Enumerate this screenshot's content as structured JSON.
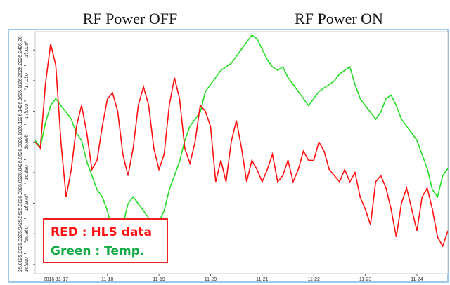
{
  "chart_data": {
    "type": "line",
    "titles": [
      "RF Power OFF",
      "RF Power ON"
    ],
    "legend_texts": [
      "RED : HLS data",
      "Green : Temp."
    ],
    "x": [
      16.6,
      16.7,
      16.8,
      16.9,
      17.0,
      17.1,
      17.2,
      17.3,
      17.4,
      17.5,
      17.6,
      17.7,
      17.8,
      17.9,
      18.0,
      18.1,
      18.2,
      18.3,
      18.4,
      18.5,
      18.6,
      18.7,
      18.8,
      18.9,
      19.0,
      19.1,
      19.2,
      19.3,
      19.4,
      19.5,
      19.6,
      19.7,
      19.8,
      19.9,
      20.0,
      20.1,
      20.2,
      20.3,
      20.4,
      20.5,
      20.6,
      20.7,
      20.8,
      20.9,
      21.0,
      21.1,
      21.2,
      21.3,
      21.4,
      21.5,
      21.6,
      21.7,
      21.8,
      21.9,
      22.0,
      22.1,
      22.2,
      22.3,
      22.4,
      22.5,
      22.6,
      22.7,
      22.8,
      22.9,
      23.0,
      23.1,
      23.2,
      23.3,
      23.4,
      23.5,
      23.6,
      23.7,
      23.8,
      23.9,
      24.0,
      24.1,
      24.2,
      24.3,
      24.4,
      24.5,
      24.6
    ],
    "series": [
      {
        "name": "HLS data",
        "color": "#ff1010",
        "values": [
          16.99,
          16.988,
          17.009,
          17.022,
          17.015,
          16.99,
          16.972,
          16.981,
          16.995,
          17.002,
          16.993,
          16.981,
          16.984,
          16.995,
          17.004,
          17.006,
          17.0,
          16.986,
          16.979,
          16.988,
          17.002,
          17.008,
          17.002,
          16.988,
          16.981,
          16.986,
          17.002,
          17.011,
          17.004,
          16.988,
          16.983,
          16.99,
          17.002,
          17.0,
          16.995,
          16.977,
          16.984,
          16.977,
          16.99,
          16.997,
          16.988,
          16.977,
          16.984,
          16.981,
          16.977,
          16.981,
          16.986,
          16.977,
          16.979,
          16.984,
          16.977,
          16.981,
          16.987,
          16.984,
          16.984,
          16.99,
          16.987,
          16.981,
          16.979,
          16.977,
          16.981,
          16.977,
          16.98,
          16.972,
          16.968,
          16.963,
          16.977,
          16.979,
          16.975,
          16.968,
          16.959,
          16.97,
          16.975,
          16.968,
          16.961,
          16.972,
          16.975,
          16.968,
          16.959,
          16.956,
          16.961
        ]
      },
      {
        "name": "Temp.",
        "color": "#22dd22",
        "axis": "y2",
        "values": [
          26.093,
          26.081,
          26.123,
          26.152,
          26.164,
          26.152,
          26.141,
          26.129,
          26.105,
          26.093,
          26.057,
          26.033,
          26.009,
          25.997,
          25.973,
          25.937,
          25.925,
          25.949,
          25.985,
          25.997,
          25.985,
          25.973,
          25.961,
          25.949,
          25.955,
          25.973,
          26.009,
          26.033,
          26.057,
          26.093,
          26.117,
          26.129,
          26.141,
          26.176,
          26.188,
          26.2,
          26.212,
          26.218,
          26.224,
          26.236,
          26.248,
          26.26,
          26.272,
          26.266,
          26.248,
          26.23,
          26.218,
          26.212,
          26.218,
          26.2,
          26.188,
          26.176,
          26.164,
          26.152,
          26.164,
          26.176,
          26.182,
          26.188,
          26.194,
          26.206,
          26.212,
          26.218,
          26.188,
          26.164,
          26.152,
          26.141,
          26.129,
          26.141,
          26.164,
          26.17,
          26.152,
          26.129,
          26.117,
          26.105,
          26.093,
          26.069,
          26.045,
          26.009,
          25.997,
          26.033,
          26.045
        ]
      }
    ],
    "xlim": [
      16.6,
      24.6
    ],
    "xticks": [
      {
        "value": 17,
        "label": "2016-11-17"
      },
      {
        "value": 18,
        "label": "11-18"
      },
      {
        "value": 19,
        "label": "11-19"
      },
      {
        "value": 20,
        "label": "11-20"
      },
      {
        "value": 21,
        "label": "11-21"
      },
      {
        "value": 22,
        "label": "11-22"
      },
      {
        "value": 23,
        "label": "11-23"
      },
      {
        "value": 24,
        "label": "11-24"
      }
    ],
    "ylim": [
      16.947,
      17.026
    ],
    "yticks": [
      {
        "value": 16.95,
        "label": "16.950"
      },
      {
        "value": 16.96,
        "label": "16.960"
      },
      {
        "value": 16.97,
        "label": "16.970"
      },
      {
        "value": 16.98,
        "label": "16.980"
      },
      {
        "value": 16.99,
        "label": "16.990"
      },
      {
        "value": 17.0,
        "label": "17.000"
      },
      {
        "value": 17.01,
        "label": "17.010"
      },
      {
        "value": 17.02,
        "label": "17.020"
      }
    ],
    "y2lim": [
      25.866,
      26.278
    ],
    "y2ticks": [
      25.88,
      {
        "value": 25.9,
        "label": "25.90"
      },
      25.92,
      25.94,
      25.96,
      25.98,
      {
        "value": 26.0,
        "label": "26.00"
      },
      26.02,
      26.04,
      26.06,
      26.08,
      {
        "value": 26.1,
        "label": "26.10"
      },
      26.12,
      26.14,
      26.16,
      26.18,
      {
        "value": 26.2,
        "label": "26.20"
      },
      26.22,
      26.24,
      26.26
    ]
  }
}
